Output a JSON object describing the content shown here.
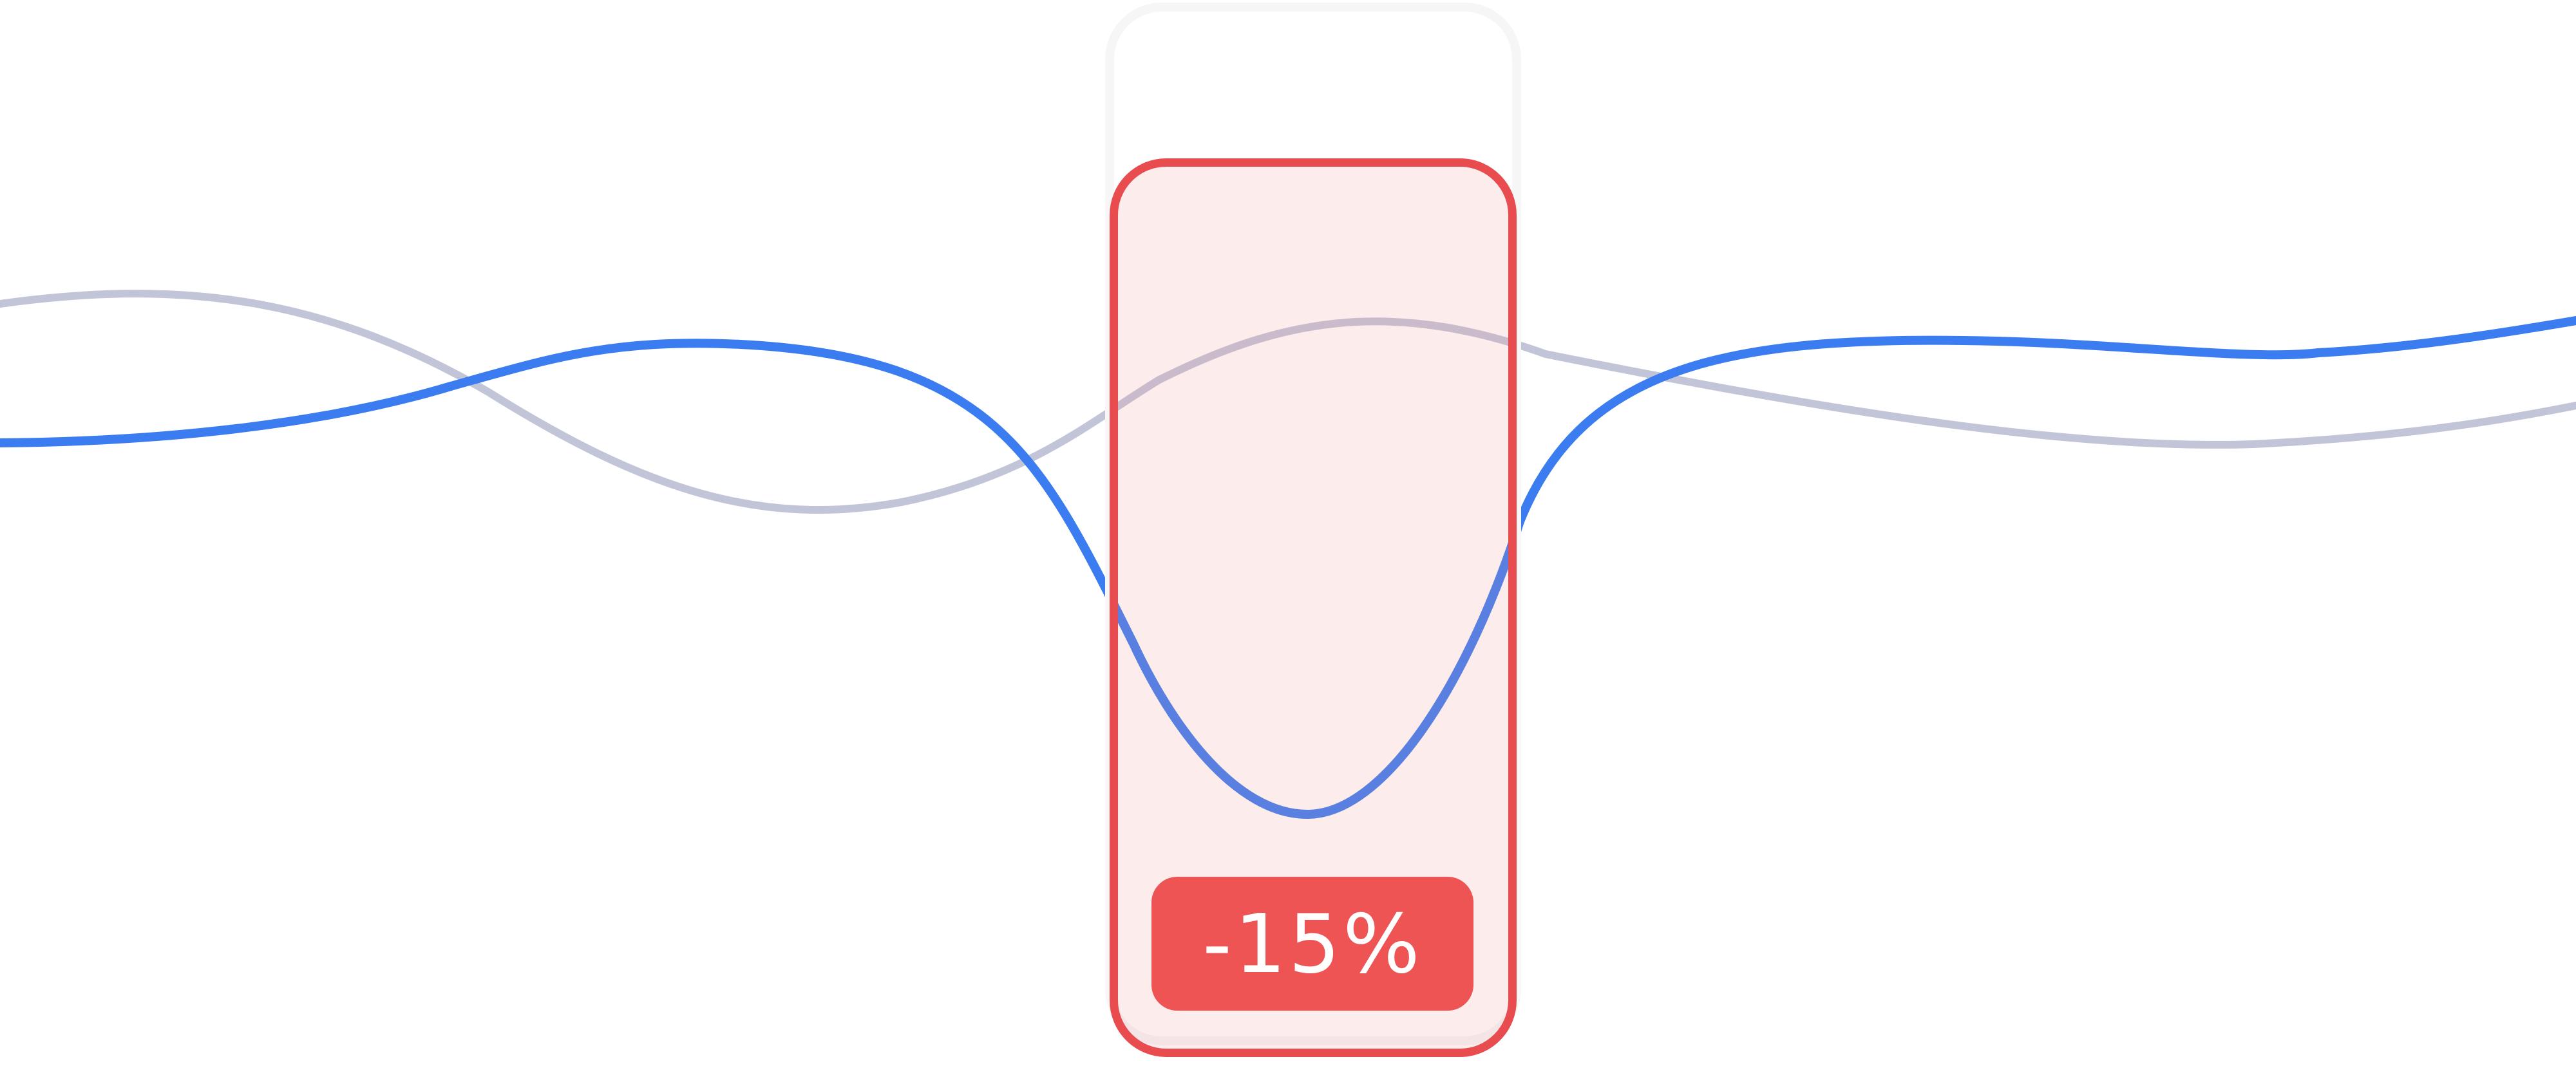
{
  "badge": {
    "text": "-15%"
  },
  "colors": {
    "primary_line": "#3b7cf1",
    "secondary_line": "#c2c4d8",
    "highlight_border": "#e94c4f",
    "highlight_fill": "#fcebeb",
    "badge_fill": "#ef5454",
    "badge_text": "#ffffff"
  }
}
